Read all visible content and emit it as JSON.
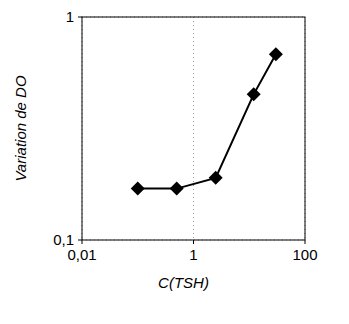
{
  "chart_data": {
    "type": "line",
    "x_label": "C(TSH)",
    "y_label": "Variation de DO",
    "log": true,
    "grid": true,
    "marker": "diamond",
    "color": "#000000",
    "x": [
      0.1,
      0.5,
      2.5,
      12,
      30
    ],
    "values": [
      0.17,
      0.17,
      0.19,
      0.45,
      0.68
    ],
    "xlim": [
      0.01,
      100
    ],
    "xticks": [
      {
        "value": 0.01,
        "label": "0,01"
      },
      1,
      100
    ],
    "ylim": [
      0.1,
      1
    ],
    "yticks": [
      {
        "value": 0.1,
        "label": "0,1"
      },
      1
    ]
  }
}
